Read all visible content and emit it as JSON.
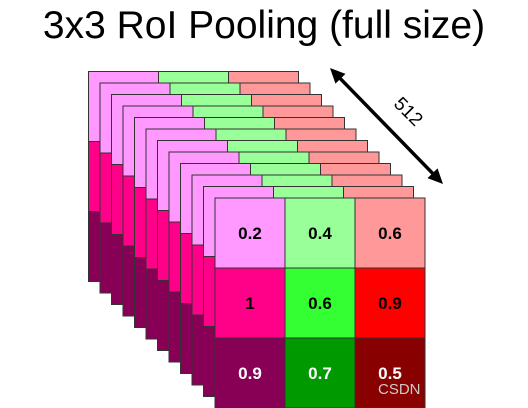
{
  "title": "3x3 RoI Pooling (full size)",
  "depth_label": "512",
  "watermark": "CSDN",
  "grid": {
    "rows": [
      [
        {
          "value": "0.2",
          "fill": "#ff99ff",
          "text_color": "#000000"
        },
        {
          "value": "0.4",
          "fill": "#99ff99",
          "text_color": "#000000"
        },
        {
          "value": "0.6",
          "fill": "#ff9999",
          "text_color": "#000000"
        }
      ],
      [
        {
          "value": "1",
          "fill": "#ff0088",
          "text_color": "#000000"
        },
        {
          "value": "0.6",
          "fill": "#33ff33",
          "text_color": "#000000"
        },
        {
          "value": "0.9",
          "fill": "#ff0000",
          "text_color": "#000000"
        }
      ],
      [
        {
          "value": "0.9",
          "fill": "#880055",
          "text_color": "#ffffff"
        },
        {
          "value": "0.7",
          "fill": "#009900",
          "text_color": "#ffffff"
        },
        {
          "value": "0.5",
          "fill": "#880000",
          "text_color": "#ffffff"
        }
      ]
    ]
  },
  "colors": {
    "stroke": "#333333",
    "arrow": "#000000",
    "watermark": "#cccccc"
  }
}
